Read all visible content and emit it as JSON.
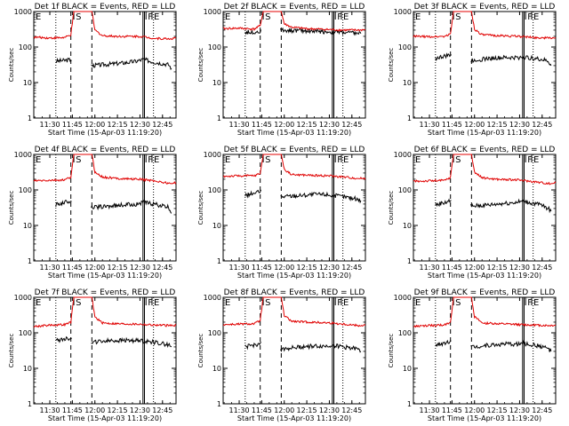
{
  "figure": {
    "panel_count": 9,
    "background": "#ffffff",
    "axis_color": "#000000",
    "events_color": "#000000",
    "lld_color": "#e00000"
  },
  "chart_data": [
    {
      "type": "line",
      "title": "Det 1f BLACK = Events, RED = LLD",
      "xlabel": "Start Time (15-Apr-03 11:19:20)",
      "ylabel": "Counts/sec",
      "yscale": "log",
      "ylim": [
        1,
        1000
      ],
      "xlim": [
        "11:19:20",
        "12:54:00"
      ],
      "x_ticks": [
        "11:30",
        "11:45",
        "12:00",
        "12:15",
        "12:30",
        "12:45"
      ],
      "y_ticks": [
        "1",
        "10",
        "100",
        "1000"
      ],
      "markers": [
        {
          "label": "E",
          "time": "11:19:20",
          "style": "solid"
        },
        {
          "label": "S",
          "time": "11:46",
          "style": "solid"
        },
        {
          "label": "F",
          "time": "12:34",
          "style": "solid"
        },
        {
          "label": "E",
          "time": "12:38",
          "style": "solid"
        }
      ],
      "series": [
        {
          "name": "Events",
          "color": "#000000",
          "x": [
            "11:34",
            "11:40",
            "11:44",
            "11:58",
            "12:10",
            "12:20",
            "12:28",
            "12:32",
            "12:39",
            "12:44",
            "12:49",
            "12:51"
          ],
          "values": [
            40,
            42,
            44,
            30,
            33,
            36,
            40,
            45,
            38,
            35,
            32,
            25
          ]
        },
        {
          "name": "LLD",
          "color": "#e00000",
          "x": [
            "11:19:20",
            "11:30",
            "11:40",
            "11:44",
            "11:46",
            "11:58",
            "12:00",
            "12:05",
            "12:15",
            "12:30",
            "12:40",
            "12:50",
            "12:54"
          ],
          "values": [
            190,
            180,
            185,
            220,
            1000,
            1000,
            300,
            210,
            200,
            200,
            175,
            170,
            180
          ]
        }
      ]
    },
    {
      "type": "line",
      "title": "Det 2f BLACK = Events, RED = LLD",
      "xlabel": "Start Time (15-Apr-03 11:19:20)",
      "ylabel": "Counts/sec",
      "yscale": "log",
      "ylim": [
        1,
        1000
      ],
      "xlim": [
        "11:19:20",
        "12:54:00"
      ],
      "x_ticks": [
        "11:30",
        "11:45",
        "12:00",
        "12:15",
        "12:30",
        "12:45"
      ],
      "y_ticks": [
        "1",
        "10",
        "100",
        "1000"
      ],
      "markers": [
        {
          "label": "E",
          "time": "11:19:20",
          "style": "solid"
        },
        {
          "label": "S",
          "time": "11:46",
          "style": "solid"
        },
        {
          "label": "F",
          "time": "12:34",
          "style": "solid"
        },
        {
          "label": "E",
          "time": "12:38",
          "style": "solid"
        }
      ],
      "series": [
        {
          "name": "Events",
          "color": "#000000",
          "x": [
            "11:34",
            "11:40",
            "11:44",
            "11:58",
            "12:10",
            "12:20",
            "12:28",
            "12:32",
            "12:39",
            "12:44",
            "12:49",
            "12:51"
          ],
          "values": [
            260,
            265,
            270,
            300,
            290,
            280,
            270,
            265,
            260,
            250,
            245,
            240
          ]
        },
        {
          "name": "LLD",
          "color": "#e00000",
          "x": [
            "11:19:20",
            "11:30",
            "11:40",
            "11:44",
            "11:46",
            "11:58",
            "12:00",
            "12:05",
            "12:15",
            "12:30",
            "12:40",
            "12:50",
            "12:54"
          ],
          "values": [
            330,
            340,
            320,
            400,
            1000,
            1000,
            450,
            360,
            330,
            310,
            300,
            300,
            310
          ]
        }
      ]
    },
    {
      "type": "line",
      "title": "Det 3f BLACK = Events, RED = LLD",
      "xlabel": "Start Time (15-Apr-03 11:19:20)",
      "ylabel": "Counts/sec",
      "yscale": "log",
      "ylim": [
        1,
        1000
      ],
      "xlim": [
        "11:19:20",
        "12:54:00"
      ],
      "x_ticks": [
        "11:30",
        "11:45",
        "12:00",
        "12:15",
        "12:30",
        "12:45"
      ],
      "y_ticks": [
        "1",
        "10",
        "100",
        "1000"
      ],
      "markers": [
        {
          "label": "E",
          "time": "11:19:20",
          "style": "solid"
        },
        {
          "label": "S",
          "time": "11:46",
          "style": "solid"
        },
        {
          "label": "F",
          "time": "12:34",
          "style": "solid"
        },
        {
          "label": "E",
          "time": "12:38",
          "style": "solid"
        }
      ],
      "series": [
        {
          "name": "Events",
          "color": "#000000",
          "x": [
            "11:34",
            "11:40",
            "11:44",
            "11:58",
            "12:10",
            "12:20",
            "12:28",
            "12:32",
            "12:39",
            "12:44",
            "12:49",
            "12:51"
          ],
          "values": [
            48,
            55,
            60,
            42,
            48,
            50,
            50,
            52,
            48,
            45,
            40,
            30
          ]
        },
        {
          "name": "LLD",
          "color": "#e00000",
          "x": [
            "11:19:20",
            "11:30",
            "11:40",
            "11:44",
            "11:46",
            "11:58",
            "12:00",
            "12:05",
            "12:15",
            "12:30",
            "12:40",
            "12:50",
            "12:54"
          ],
          "values": [
            200,
            195,
            200,
            230,
            1000,
            1000,
            320,
            220,
            210,
            200,
            185,
            180,
            185
          ]
        }
      ]
    },
    {
      "type": "line",
      "title": "Det 4f BLACK = Events, RED = LLD",
      "xlabel": "Start Time (15-Apr-03 11:19:20)",
      "ylabel": "Counts/sec",
      "yscale": "log",
      "ylim": [
        1,
        1000
      ],
      "xlim": [
        "11:19:20",
        "12:54:00"
      ],
      "x_ticks": [
        "11:30",
        "11:45",
        "12:00",
        "12:15",
        "12:30",
        "12:45"
      ],
      "y_ticks": [
        "1",
        "10",
        "100",
        "1000"
      ],
      "markers": [
        {
          "label": "E",
          "time": "11:19:20",
          "style": "solid"
        },
        {
          "label": "S",
          "time": "11:46",
          "style": "solid"
        },
        {
          "label": "F",
          "time": "12:34",
          "style": "solid"
        },
        {
          "label": "E",
          "time": "12:38",
          "style": "solid"
        }
      ],
      "series": [
        {
          "name": "Events",
          "color": "#000000",
          "x": [
            "11:34",
            "11:40",
            "11:44",
            "11:58",
            "12:10",
            "12:20",
            "12:28",
            "12:32",
            "12:39",
            "12:44",
            "12:49",
            "12:51"
          ],
          "values": [
            38,
            45,
            50,
            32,
            35,
            38,
            40,
            45,
            40,
            36,
            32,
            22
          ]
        },
        {
          "name": "LLD",
          "color": "#e00000",
          "x": [
            "11:19:20",
            "11:30",
            "11:40",
            "11:44",
            "11:46",
            "11:58",
            "12:00",
            "12:05",
            "12:15",
            "12:30",
            "12:40",
            "12:50",
            "12:54"
          ],
          "values": [
            180,
            185,
            190,
            230,
            1000,
            1000,
            320,
            230,
            210,
            200,
            180,
            150,
            160
          ]
        }
      ]
    },
    {
      "type": "line",
      "title": "Det 5f BLACK = Events, RED = LLD",
      "xlabel": "Start Time (15-Apr-03 11:19:20)",
      "ylabel": "Counts/sec",
      "yscale": "log",
      "ylim": [
        1,
        1000
      ],
      "xlim": [
        "11:19:20",
        "12:54:00"
      ],
      "x_ticks": [
        "11:30",
        "11:45",
        "12:00",
        "12:15",
        "12:30",
        "12:45"
      ],
      "y_ticks": [
        "1",
        "10",
        "100",
        "1000"
      ],
      "markers": [
        {
          "label": "E",
          "time": "11:19:20",
          "style": "solid"
        },
        {
          "label": "S",
          "time": "11:46",
          "style": "solid"
        },
        {
          "label": "F",
          "time": "12:34",
          "style": "solid"
        },
        {
          "label": "E",
          "time": "12:38",
          "style": "solid"
        }
      ],
      "series": [
        {
          "name": "Events",
          "color": "#000000",
          "x": [
            "11:34",
            "11:40",
            "11:44",
            "11:58",
            "12:10",
            "12:20",
            "12:28",
            "12:32",
            "12:39",
            "12:44",
            "12:49",
            "12:51"
          ],
          "values": [
            70,
            80,
            90,
            65,
            70,
            75,
            75,
            70,
            65,
            60,
            55,
            50
          ]
        },
        {
          "name": "LLD",
          "color": "#e00000",
          "x": [
            "11:19:20",
            "11:30",
            "11:40",
            "11:44",
            "11:46",
            "11:58",
            "12:00",
            "12:05",
            "12:15",
            "12:30",
            "12:40",
            "12:50",
            "12:54"
          ],
          "values": [
            240,
            250,
            250,
            290,
            1000,
            1000,
            380,
            270,
            260,
            250,
            230,
            210,
            215
          ]
        }
      ]
    },
    {
      "type": "line",
      "title": "Det 6f BLACK = Events, RED = LLD",
      "xlabel": "Start Time (15-Apr-03 11:19:20)",
      "ylabel": "Counts/sec",
      "yscale": "log",
      "ylim": [
        1,
        1000
      ],
      "xlim": [
        "11:19:20",
        "12:54:00"
      ],
      "x_ticks": [
        "11:30",
        "11:45",
        "12:00",
        "12:15",
        "12:30",
        "12:45"
      ],
      "y_ticks": [
        "1",
        "10",
        "100",
        "1000"
      ],
      "markers": [
        {
          "label": "E",
          "time": "11:19:20",
          "style": "solid"
        },
        {
          "label": "S",
          "time": "11:46",
          "style": "solid"
        },
        {
          "label": "F",
          "time": "12:34",
          "style": "solid"
        },
        {
          "label": "E",
          "time": "12:38",
          "style": "solid"
        }
      ],
      "series": [
        {
          "name": "Events",
          "color": "#000000",
          "x": [
            "11:34",
            "11:40",
            "11:44",
            "11:58",
            "12:10",
            "12:20",
            "12:28",
            "12:32",
            "12:39",
            "12:44",
            "12:49",
            "12:51"
          ],
          "values": [
            38,
            44,
            50,
            35,
            38,
            42,
            45,
            48,
            42,
            38,
            30,
            25
          ]
        },
        {
          "name": "LLD",
          "color": "#e00000",
          "x": [
            "11:19:20",
            "11:30",
            "11:40",
            "11:44",
            "11:46",
            "11:58",
            "12:00",
            "12:05",
            "12:15",
            "12:30",
            "12:40",
            "12:50",
            "12:54"
          ],
          "values": [
            175,
            180,
            185,
            225,
            1000,
            1000,
            320,
            220,
            200,
            190,
            170,
            150,
            160
          ]
        }
      ]
    },
    {
      "type": "line",
      "title": "Det 7f BLACK = Events, RED = LLD",
      "xlabel": "Start Time (15-Apr-03 11:19:20)",
      "ylabel": "Counts/sec",
      "yscale": "log",
      "ylim": [
        1,
        1000
      ],
      "xlim": [
        "11:19:20",
        "12:54:00"
      ],
      "x_ticks": [
        "11:30",
        "11:45",
        "12:00",
        "12:15",
        "12:30",
        "12:45"
      ],
      "y_ticks": [
        "1",
        "10",
        "100",
        "1000"
      ],
      "markers": [
        {
          "label": "E",
          "time": "11:19:20",
          "style": "solid"
        },
        {
          "label": "S",
          "time": "11:46",
          "style": "solid"
        },
        {
          "label": "F",
          "time": "12:34",
          "style": "solid"
        },
        {
          "label": "E",
          "time": "12:38",
          "style": "solid"
        }
      ],
      "series": [
        {
          "name": "Events",
          "color": "#000000",
          "x": [
            "11:34",
            "11:40",
            "11:44",
            "11:58",
            "12:10",
            "12:20",
            "12:28",
            "12:32",
            "12:39",
            "12:44",
            "12:49",
            "12:51"
          ],
          "values": [
            60,
            68,
            72,
            55,
            60,
            62,
            60,
            58,
            55,
            50,
            46,
            40
          ]
        },
        {
          "name": "LLD",
          "color": "#e00000",
          "x": [
            "11:19:20",
            "11:30",
            "11:40",
            "11:44",
            "11:46",
            "11:58",
            "12:00",
            "12:05",
            "12:15",
            "12:30",
            "12:40",
            "12:50",
            "12:54"
          ],
          "values": [
            150,
            165,
            170,
            200,
            1000,
            1000,
            280,
            190,
            180,
            175,
            165,
            160,
            165
          ]
        }
      ]
    },
    {
      "type": "line",
      "title": "Det 8f BLACK = Events, RED = LLD",
      "xlabel": "Start Time (15-Apr-03 11:19:20)",
      "ylabel": "Counts/sec",
      "yscale": "log",
      "ylim": [
        1,
        1000
      ],
      "xlim": [
        "11:19:20",
        "12:54:00"
      ],
      "x_ticks": [
        "11:30",
        "11:45",
        "12:00",
        "12:15",
        "12:30",
        "12:45"
      ],
      "y_ticks": [
        "1",
        "10",
        "100",
        "1000"
      ],
      "markers": [
        {
          "label": "E",
          "time": "11:19:20",
          "style": "solid"
        },
        {
          "label": "S",
          "time": "11:46",
          "style": "solid"
        },
        {
          "label": "F",
          "time": "12:34",
          "style": "solid"
        },
        {
          "label": "E",
          "time": "12:38",
          "style": "solid"
        }
      ],
      "series": [
        {
          "name": "Events",
          "color": "#000000",
          "x": [
            "11:34",
            "11:40",
            "11:44",
            "11:58",
            "12:10",
            "12:20",
            "12:28",
            "12:32",
            "12:39",
            "12:44",
            "12:49",
            "12:51"
          ],
          "values": [
            40,
            45,
            50,
            35,
            40,
            42,
            42,
            45,
            40,
            38,
            34,
            30
          ]
        },
        {
          "name": "LLD",
          "color": "#e00000",
          "x": [
            "11:19:20",
            "11:30",
            "11:40",
            "11:44",
            "11:46",
            "11:58",
            "12:00",
            "12:05",
            "12:15",
            "12:30",
            "12:40",
            "12:50",
            "12:54"
          ],
          "values": [
            170,
            175,
            180,
            220,
            1000,
            1000,
            300,
            210,
            200,
            190,
            175,
            160,
            165
          ]
        }
      ]
    },
    {
      "type": "line",
      "title": "Det 9f BLACK = Events, RED = LLD",
      "xlabel": "Start Time (15-Apr-03 11:19:20)",
      "ylabel": "Counts/sec",
      "yscale": "log",
      "ylim": [
        1,
        1000
      ],
      "xlim": [
        "11:19:20",
        "12:54:00"
      ],
      "x_ticks": [
        "11:30",
        "11:45",
        "12:00",
        "12:15",
        "12:30",
        "12:45"
      ],
      "y_ticks": [
        "1",
        "10",
        "100",
        "1000"
      ],
      "markers": [
        {
          "label": "E",
          "time": "11:19:20",
          "style": "solid"
        },
        {
          "label": "S",
          "time": "11:46",
          "style": "solid"
        },
        {
          "label": "F",
          "time": "12:34",
          "style": "solid"
        },
        {
          "label": "E",
          "time": "12:38",
          "style": "solid"
        }
      ],
      "series": [
        {
          "name": "Events",
          "color": "#000000",
          "x": [
            "11:34",
            "11:40",
            "11:44",
            "11:58",
            "12:10",
            "12:20",
            "12:28",
            "12:32",
            "12:39",
            "12:44",
            "12:49",
            "12:51"
          ],
          "values": [
            45,
            52,
            58,
            40,
            45,
            48,
            48,
            50,
            45,
            42,
            36,
            30
          ]
        },
        {
          "name": "LLD",
          "color": "#e00000",
          "x": [
            "11:19:20",
            "11:30",
            "11:40",
            "11:44",
            "11:46",
            "11:58",
            "12:00",
            "12:05",
            "12:15",
            "12:30",
            "12:40",
            "12:50",
            "12:54"
          ],
          "values": [
            150,
            160,
            165,
            200,
            1000,
            1000,
            280,
            190,
            180,
            170,
            165,
            160,
            165
          ]
        }
      ]
    }
  ]
}
